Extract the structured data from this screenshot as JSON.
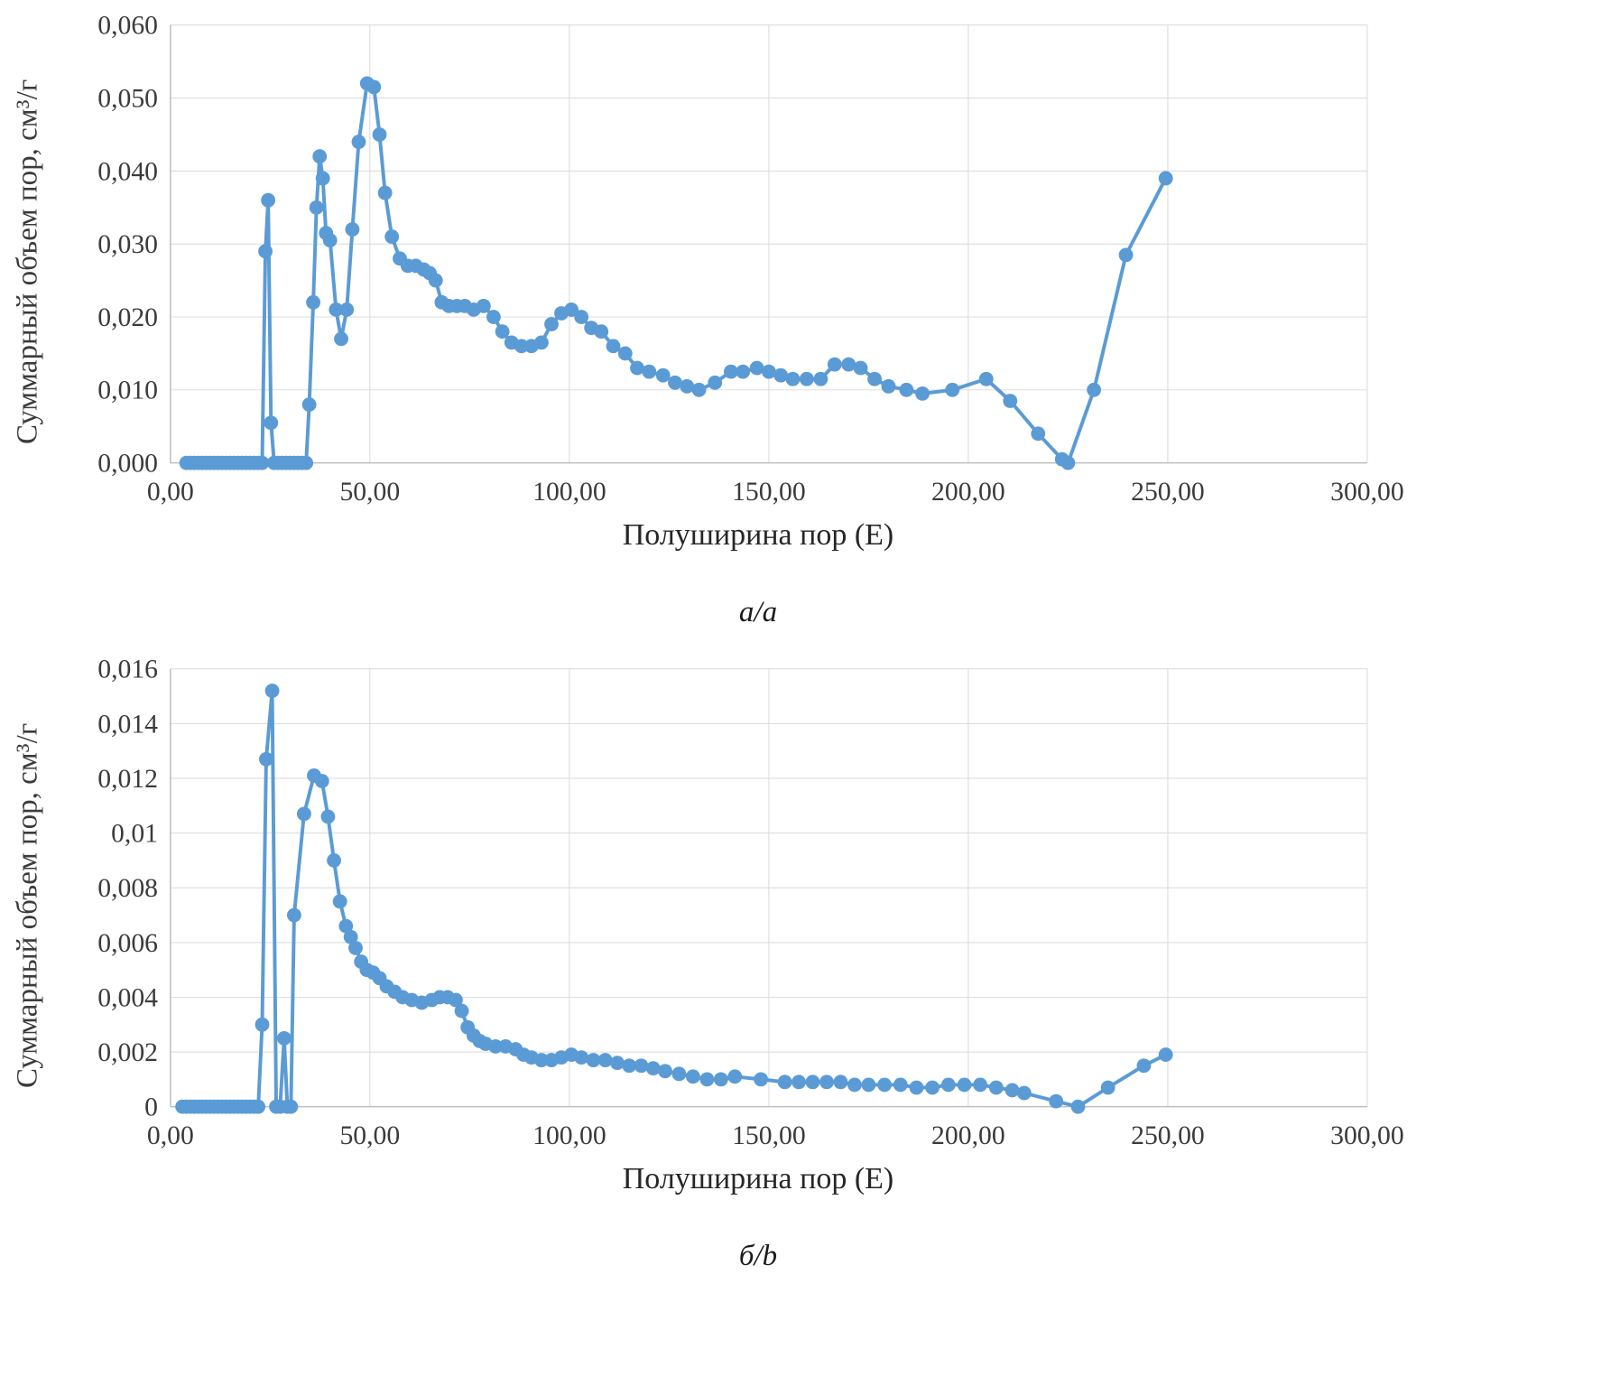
{
  "page": {
    "background": "#ffffff"
  },
  "chart_data": [
    {
      "type": "line",
      "marker": "circle",
      "caption": "а/a",
      "xlabel": "Полуширина пор (Е)",
      "ylabel": "Суммарный объем пор, см³/г",
      "color": "#5B9BD5",
      "grid": true,
      "legend": "none",
      "xlim": [
        0,
        300
      ],
      "ylim": [
        0,
        0.06
      ],
      "x_ticks": [
        {
          "v": 0,
          "label": "0,00"
        },
        {
          "v": 50,
          "label": "50,00"
        },
        {
          "v": 100,
          "label": "100,00"
        },
        {
          "v": 150,
          "label": "150,00"
        },
        {
          "v": 200,
          "label": "200,00"
        },
        {
          "v": 250,
          "label": "250,00"
        },
        {
          "v": 300,
          "label": "300,00"
        }
      ],
      "y_ticks": [
        {
          "v": 0,
          "label": "0,000"
        },
        {
          "v": 0.01,
          "label": "0,010"
        },
        {
          "v": 0.02,
          "label": "0,020"
        },
        {
          "v": 0.03,
          "label": "0,030"
        },
        {
          "v": 0.04,
          "label": "0,040"
        },
        {
          "v": 0.05,
          "label": "0,050"
        },
        {
          "v": 0.06,
          "label": "0,060"
        }
      ],
      "points": [
        [
          4,
          0
        ],
        [
          5,
          0
        ],
        [
          6,
          0
        ],
        [
          7,
          0
        ],
        [
          8,
          0
        ],
        [
          9,
          0
        ],
        [
          10,
          0
        ],
        [
          11,
          0
        ],
        [
          12,
          0
        ],
        [
          13,
          0
        ],
        [
          14,
          0
        ],
        [
          15,
          0
        ],
        [
          16,
          0
        ],
        [
          17,
          0
        ],
        [
          18,
          0
        ],
        [
          19,
          0
        ],
        [
          20,
          0
        ],
        [
          21,
          0
        ],
        [
          22,
          0
        ],
        [
          23,
          0
        ],
        [
          23.8,
          0.029
        ],
        [
          24.5,
          0.036
        ],
        [
          25.2,
          0.0055
        ],
        [
          26,
          0
        ],
        [
          27,
          0
        ],
        [
          28,
          0
        ],
        [
          29,
          0
        ],
        [
          30,
          0
        ],
        [
          31,
          0
        ],
        [
          32,
          0
        ],
        [
          33,
          0
        ],
        [
          34,
          0
        ],
        [
          34.8,
          0.008
        ],
        [
          35.8,
          0.022
        ],
        [
          36.6,
          0.035
        ],
        [
          37.4,
          0.042
        ],
        [
          38.2,
          0.039
        ],
        [
          39,
          0.0315
        ],
        [
          40,
          0.0305
        ],
        [
          41.5,
          0.021
        ],
        [
          42.8,
          0.017
        ],
        [
          44.2,
          0.021
        ],
        [
          45.6,
          0.032
        ],
        [
          47.2,
          0.044
        ],
        [
          49.3,
          0.052
        ],
        [
          51,
          0.0515
        ],
        [
          52.4,
          0.045
        ],
        [
          53.8,
          0.037
        ],
        [
          55.5,
          0.031
        ],
        [
          57.5,
          0.028
        ],
        [
          59.5,
          0.027
        ],
        [
          61.5,
          0.027
        ],
        [
          63.5,
          0.0265
        ],
        [
          65,
          0.026
        ],
        [
          66.5,
          0.025
        ],
        [
          68,
          0.022
        ],
        [
          69.8,
          0.0215
        ],
        [
          71.8,
          0.0215
        ],
        [
          73.8,
          0.0215
        ],
        [
          76,
          0.021
        ],
        [
          78.5,
          0.0215
        ],
        [
          81,
          0.02
        ],
        [
          83.2,
          0.018
        ],
        [
          85.5,
          0.0165
        ],
        [
          88,
          0.016
        ],
        [
          90.5,
          0.016
        ],
        [
          93,
          0.0165
        ],
        [
          95.5,
          0.019
        ],
        [
          98,
          0.0205
        ],
        [
          100.5,
          0.021
        ],
        [
          103,
          0.02
        ],
        [
          105.5,
          0.0185
        ],
        [
          108,
          0.018
        ],
        [
          111,
          0.016
        ],
        [
          114,
          0.015
        ],
        [
          117,
          0.013
        ],
        [
          120,
          0.0125
        ],
        [
          123.5,
          0.012
        ],
        [
          126.5,
          0.011
        ],
        [
          129.5,
          0.0105
        ],
        [
          132.5,
          0.01
        ],
        [
          136.5,
          0.011
        ],
        [
          140.5,
          0.0125
        ],
        [
          143.5,
          0.0125
        ],
        [
          147,
          0.013
        ],
        [
          150,
          0.0125
        ],
        [
          153,
          0.012
        ],
        [
          156,
          0.0115
        ],
        [
          159.5,
          0.0115
        ],
        [
          163,
          0.0115
        ],
        [
          166.5,
          0.0135
        ],
        [
          170,
          0.0135
        ],
        [
          173,
          0.013
        ],
        [
          176.5,
          0.0115
        ],
        [
          180,
          0.0105
        ],
        [
          184.5,
          0.01
        ],
        [
          188.5,
          0.0095
        ],
        [
          196,
          0.01
        ],
        [
          204.5,
          0.0115
        ],
        [
          210.5,
          0.0085
        ],
        [
          217.5,
          0.004
        ],
        [
          223.5,
          0.0005
        ],
        [
          225,
          0
        ],
        [
          231.5,
          0.01
        ],
        [
          239.5,
          0.0285
        ],
        [
          249.5,
          0.039
        ]
      ]
    },
    {
      "type": "line",
      "marker": "circle",
      "caption": "б/b",
      "xlabel": "Полуширина пор (Е)",
      "ylabel": "Суммарный объем пор, см³/г",
      "color": "#5B9BD5",
      "grid": true,
      "legend": "none",
      "xlim": [
        0,
        300
      ],
      "ylim": [
        0,
        0.016
      ],
      "x_ticks": [
        {
          "v": 0,
          "label": "0,00"
        },
        {
          "v": 50,
          "label": "50,00"
        },
        {
          "v": 100,
          "label": "100,00"
        },
        {
          "v": 150,
          "label": "150,00"
        },
        {
          "v": 200,
          "label": "200,00"
        },
        {
          "v": 250,
          "label": "250,00"
        },
        {
          "v": 300,
          "label": "300,00"
        }
      ],
      "y_ticks": [
        {
          "v": 0,
          "label": "0"
        },
        {
          "v": 0.002,
          "label": "0,002"
        },
        {
          "v": 0.004,
          "label": "0,004"
        },
        {
          "v": 0.006,
          "label": "0,006"
        },
        {
          "v": 0.008,
          "label": "0,008"
        },
        {
          "v": 0.01,
          "label": "0,01"
        },
        {
          "v": 0.012,
          "label": "0,012"
        },
        {
          "v": 0.014,
          "label": "0,014"
        },
        {
          "v": 0.016,
          "label": "0,016"
        }
      ],
      "points": [
        [
          3,
          0
        ],
        [
          4,
          0
        ],
        [
          5,
          0
        ],
        [
          6,
          0
        ],
        [
          7,
          0
        ],
        [
          8,
          0
        ],
        [
          9,
          0
        ],
        [
          10,
          0
        ],
        [
          11,
          0
        ],
        [
          12,
          0
        ],
        [
          13,
          0
        ],
        [
          14,
          0
        ],
        [
          15,
          0
        ],
        [
          16,
          0
        ],
        [
          17,
          0
        ],
        [
          18,
          0
        ],
        [
          19,
          0
        ],
        [
          20,
          0
        ],
        [
          21,
          0
        ],
        [
          22,
          0
        ],
        [
          23,
          0.003
        ],
        [
          24,
          0.0127
        ],
        [
          25.5,
          0.0152
        ],
        [
          26.5,
          0
        ],
        [
          27.5,
          0
        ],
        [
          28.5,
          0.0025
        ],
        [
          29.3,
          0
        ],
        [
          30.2,
          0
        ],
        [
          31,
          0.007
        ],
        [
          33.5,
          0.0107
        ],
        [
          36,
          0.0121
        ],
        [
          38,
          0.0119
        ],
        [
          39.5,
          0.0106
        ],
        [
          41,
          0.009
        ],
        [
          42.5,
          0.0075
        ],
        [
          44,
          0.0066
        ],
        [
          45.2,
          0.0062
        ],
        [
          46.4,
          0.0058
        ],
        [
          47.8,
          0.0053
        ],
        [
          49.2,
          0.005
        ],
        [
          50.8,
          0.0049
        ],
        [
          52.4,
          0.0047
        ],
        [
          54.2,
          0.0044
        ],
        [
          56.2,
          0.0042
        ],
        [
          58.2,
          0.004
        ],
        [
          60.5,
          0.0039
        ],
        [
          63,
          0.0038
        ],
        [
          65.5,
          0.0039
        ],
        [
          67.5,
          0.004
        ],
        [
          69.5,
          0.004
        ],
        [
          71.5,
          0.0039
        ],
        [
          73,
          0.0035
        ],
        [
          74.5,
          0.0029
        ],
        [
          76,
          0.0026
        ],
        [
          77.5,
          0.0024
        ],
        [
          79,
          0.0023
        ],
        [
          81.5,
          0.0022
        ],
        [
          84,
          0.0022
        ],
        [
          86.5,
          0.0021
        ],
        [
          88.5,
          0.0019
        ],
        [
          90.5,
          0.0018
        ],
        [
          93,
          0.0017
        ],
        [
          95.5,
          0.0017
        ],
        [
          98,
          0.0018
        ],
        [
          100.5,
          0.0019
        ],
        [
          103,
          0.0018
        ],
        [
          106,
          0.0017
        ],
        [
          109,
          0.0017
        ],
        [
          112,
          0.0016
        ],
        [
          115,
          0.0015
        ],
        [
          118,
          0.0015
        ],
        [
          121,
          0.0014
        ],
        [
          124,
          0.0013
        ],
        [
          127.5,
          0.0012
        ],
        [
          131,
          0.0011
        ],
        [
          134.5,
          0.001
        ],
        [
          138,
          0.001
        ],
        [
          141.5,
          0.0011
        ],
        [
          148,
          0.001
        ],
        [
          154,
          0.0009
        ],
        [
          157.5,
          0.0009
        ],
        [
          161,
          0.0009
        ],
        [
          164.5,
          0.0009
        ],
        [
          168,
          0.0009
        ],
        [
          171.5,
          0.0008
        ],
        [
          175,
          0.0008
        ],
        [
          179,
          0.0008
        ],
        [
          183,
          0.0008
        ],
        [
          187,
          0.0007
        ],
        [
          191,
          0.0007
        ],
        [
          195,
          0.0008
        ],
        [
          199,
          0.0008
        ],
        [
          203,
          0.0008
        ],
        [
          207,
          0.0007
        ],
        [
          211,
          0.0006
        ],
        [
          214,
          0.0005
        ],
        [
          222,
          0.0002
        ],
        [
          227.5,
          0
        ],
        [
          235,
          0.0007
        ],
        [
          244,
          0.0015
        ],
        [
          249.5,
          0.0019
        ]
      ]
    }
  ]
}
